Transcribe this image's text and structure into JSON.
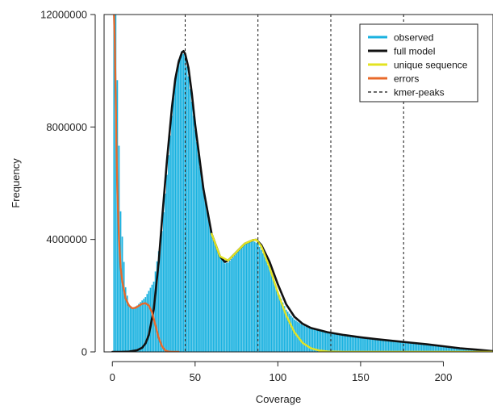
{
  "chart_data": {
    "type": "histogram",
    "xlabel": "Coverage",
    "ylabel": "Frequency",
    "xlim": [
      -5,
      230
    ],
    "ylim": [
      0,
      12000000
    ],
    "x_ticks": [
      0,
      50,
      100,
      150,
      200
    ],
    "y_ticks": [
      0,
      4000000,
      8000000,
      12000000
    ],
    "y_tick_labels": [
      "0",
      "4000000",
      "8000000",
      "12000000"
    ],
    "grid": false,
    "legend_position": "top-right",
    "kmer_peaks": [
      44,
      88,
      132,
      176
    ],
    "series": [
      {
        "name": "observed",
        "style": "bars",
        "color": "#1ab2e0",
        "x": [
          2,
          5,
          8,
          10,
          12,
          15,
          20,
          25,
          30,
          33,
          36,
          38,
          40,
          42,
          44,
          46,
          48,
          50,
          55,
          60,
          65,
          68,
          70,
          75,
          80,
          85,
          88,
          92,
          96,
          100,
          105,
          110,
          115,
          120,
          130,
          140,
          150,
          160,
          170,
          180,
          190,
          200,
          210,
          220,
          230
        ],
        "y": [
          12000000,
          5000000,
          2300000,
          1700000,
          1550000,
          1650000,
          1950000,
          2500000,
          4300000,
          6300000,
          8400000,
          9700000,
          10400000,
          10700000,
          10500000,
          9800000,
          8900000,
          7900000,
          5700000,
          4200000,
          3400000,
          3150000,
          3180000,
          3500000,
          3850000,
          3950000,
          3850000,
          3400000,
          2800000,
          2150000,
          1500000,
          1150000,
          950000,
          820000,
          680000,
          580000,
          500000,
          430000,
          370000,
          310000,
          250000,
          190000,
          140000,
          90000,
          50000
        ]
      },
      {
        "name": "full model",
        "style": "line",
        "color": "#111111",
        "x": [
          0,
          5,
          10,
          15,
          18,
          20,
          22,
          25,
          28,
          30,
          33,
          36,
          38,
          40,
          42,
          43,
          44,
          46,
          48,
          50,
          55,
          60,
          65,
          68,
          70,
          75,
          80,
          85,
          87,
          90,
          95,
          100,
          105,
          110,
          115,
          120,
          130,
          140,
          150,
          160,
          170,
          180,
          190,
          200,
          210,
          220,
          230
        ],
        "y": [
          0,
          0,
          10000,
          60000,
          150000,
          300000,
          600000,
          1500000,
          3200000,
          4700000,
          6800000,
          8700000,
          9700000,
          10300000,
          10650000,
          10700000,
          10600000,
          10100000,
          9200000,
          8100000,
          5800000,
          4200000,
          3400000,
          3200000,
          3250000,
          3550000,
          3850000,
          3980000,
          3990000,
          3800000,
          3200000,
          2400000,
          1700000,
          1250000,
          1000000,
          850000,
          700000,
          600000,
          520000,
          450000,
          390000,
          330000,
          270000,
          200000,
          130000,
          80000,
          30000
        ]
      },
      {
        "name": "unique sequence",
        "style": "line",
        "color": "#e3e321",
        "x": [
          60,
          65,
          70,
          75,
          80,
          85,
          87,
          90,
          95,
          100,
          105,
          110,
          115,
          120,
          125,
          130,
          140,
          150,
          160,
          170,
          180,
          190,
          200,
          210,
          220,
          230
        ],
        "y": [
          4200000,
          3400000,
          3250000,
          3550000,
          3850000,
          3980000,
          3990000,
          3750000,
          3000000,
          2100000,
          1300000,
          700000,
          320000,
          130000,
          50000,
          15000,
          3000,
          0,
          0,
          0,
          0,
          0,
          0,
          0,
          0,
          0
        ]
      },
      {
        "name": "errors",
        "style": "line",
        "color": "#e8692a",
        "x": [
          1,
          1.5,
          2,
          2.5,
          3,
          4,
          5,
          6,
          8,
          10,
          12,
          14,
          16,
          18,
          20,
          22,
          24,
          26,
          28,
          30,
          32,
          34,
          36,
          38,
          40
        ],
        "y": [
          12000000,
          11000000,
          9000000,
          7200000,
          5800000,
          4000000,
          3000000,
          2500000,
          1900000,
          1650000,
          1550000,
          1570000,
          1640000,
          1710000,
          1730000,
          1650000,
          1400000,
          950000,
          500000,
          200000,
          50000,
          10000,
          0,
          0,
          0
        ]
      },
      {
        "name": "kmer-peaks",
        "style": "vline-dashed",
        "color": "#111111"
      }
    ]
  }
}
